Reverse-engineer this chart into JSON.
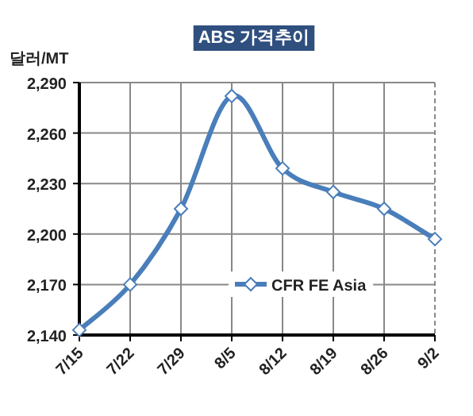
{
  "chart_data": {
    "type": "line",
    "title": "ABS 가격추이",
    "ylabel": "달러/MT",
    "categories": [
      "7/15",
      "7/22",
      "7/29",
      "8/5",
      "8/12",
      "8/19",
      "8/26",
      "9/2"
    ],
    "series": [
      {
        "name": "CFR FE Asia",
        "color": "#4a7ebb",
        "values": [
          2143,
          2170,
          2215,
          2282,
          2239,
          2225,
          2215,
          2197
        ]
      }
    ],
    "ylim": [
      2140,
      2290
    ],
    "yticks": [
      {
        "value": 2140,
        "label": "2,140"
      },
      {
        "value": 2170,
        "label": "2,170"
      },
      {
        "value": 2200,
        "label": "2,200"
      },
      {
        "value": 2230,
        "label": "2,230"
      },
      {
        "value": 2260,
        "label": "2,260"
      },
      {
        "value": 2290,
        "label": "2,290"
      }
    ],
    "grid": true,
    "legend": "right",
    "marker": "diamond"
  }
}
